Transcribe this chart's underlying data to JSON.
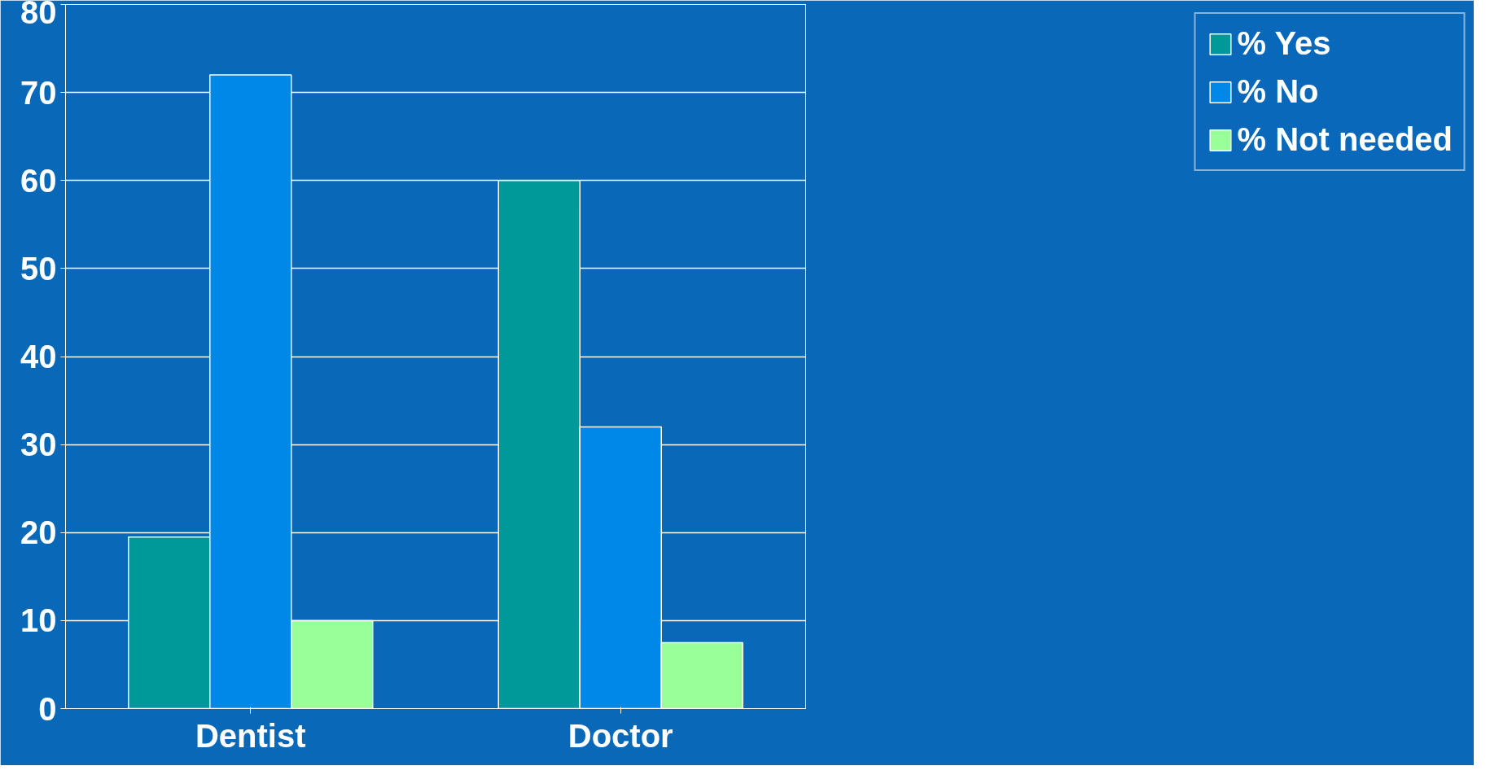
{
  "chart_data": {
    "type": "bar",
    "categories": [
      "Dentist",
      "Doctor"
    ],
    "series": [
      {
        "name": "% Yes",
        "color": "#009999",
        "values": [
          19.5,
          60
        ]
      },
      {
        "name": "% No",
        "color": "#0088e8",
        "values": [
          72,
          32
        ]
      },
      {
        "name": "% Not needed",
        "color": "#99ff99",
        "values": [
          10,
          7.5
        ]
      }
    ],
    "ylim": [
      0,
      80
    ],
    "yticks": [
      0,
      10,
      20,
      30,
      40,
      50,
      60,
      70,
      80
    ],
    "grid": "y",
    "legend": "right"
  }
}
